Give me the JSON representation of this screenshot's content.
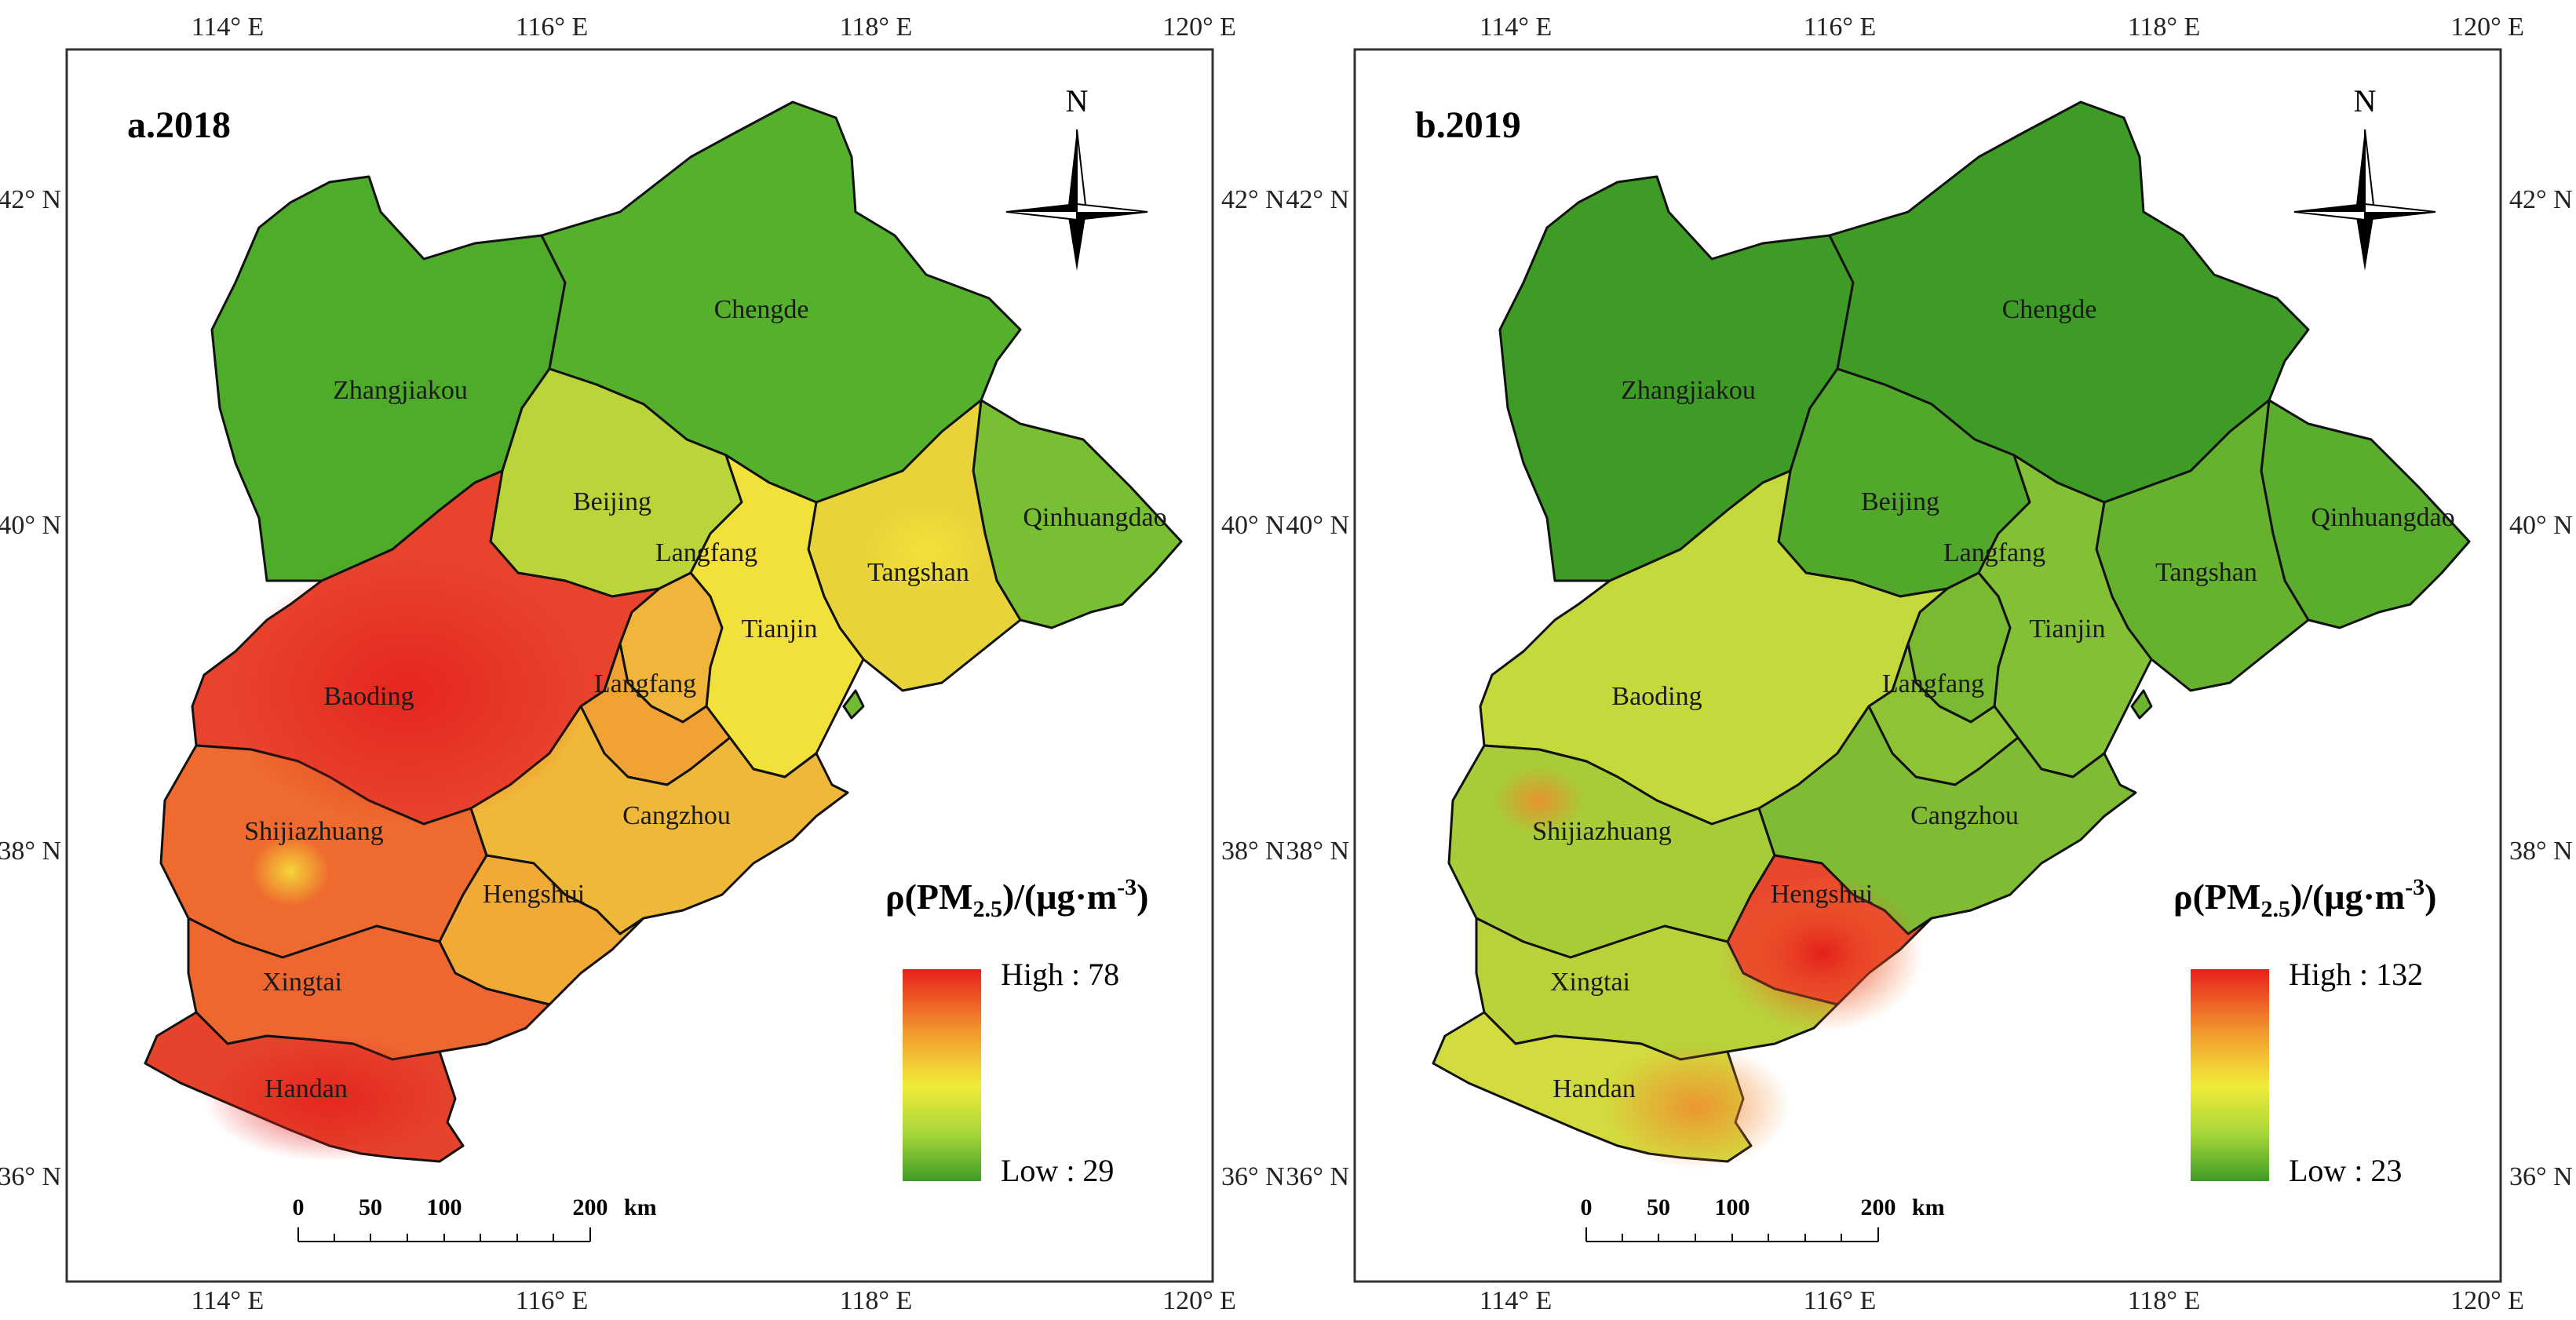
{
  "axes": {
    "lon_labels": [
      "114° E",
      "116° E",
      "118° E",
      "120° E"
    ],
    "lat_labels": [
      "42° N",
      "40° N",
      "38° N",
      "36° N"
    ]
  },
  "panels": [
    {
      "title": "a.2018",
      "legend": {
        "title": "ρ(PM",
        "title_sub": "2.5",
        "title_tail": ")/(μg·m",
        "title_sup": "-3",
        "title_end": ")",
        "high": "High : 78",
        "low": "Low : 29"
      },
      "colors": {
        "Zhangjiakou": "#4fab2a",
        "Chengde": "#55b02c",
        "Beijing": "#b9d53a",
        "Qinhuangdao": "#78bf33",
        "Tangshan": "#e8d43a",
        "Tianjin": "#f2e13a",
        "LangfangN": "#f0b53a",
        "Langfang": "#f0a235",
        "Baoding": "#e8432c",
        "Shijiazhuang": "#ee6a2e",
        "Cangzhou": "#f0b838",
        "Hengshui": "#f2aa36",
        "Xingtai": "#ee6630",
        "Handan": "#e5432c"
      }
    },
    {
      "title": "b.2019",
      "legend": {
        "title": "ρ(PM",
        "title_sub": "2.5",
        "title_tail": ")/(μg·m",
        "title_sup": "-3",
        "title_end": ")",
        "high": "High : 132",
        "low": "Low : 23"
      },
      "colors": {
        "Zhangjiakou": "#3e9c26",
        "Chengde": "#3e9c26",
        "Beijing": "#52a82b",
        "Qinhuangdao": "#5bad2e",
        "Tangshan": "#66b22f",
        "Tianjin": "#82c035",
        "LangfangN": "#7ab932",
        "Langfang": "#8ec336",
        "Baoding": "#c4d93c",
        "Shijiazhuang": "#a6cd38",
        "Cangzhou": "#7fbb33",
        "Hengshui": "#e9472d",
        "Xingtai": "#b9d23a",
        "Handan": "#d3dc3e"
      }
    }
  ],
  "cities": [
    "Zhangjiakou",
    "Chengde",
    "Beijing",
    "Qinhuangdao",
    "Langfang",
    "Tangshan",
    "Tianjin",
    "Baoding",
    "Langfang",
    "Shijiazhuang",
    "Cangzhou",
    "Hengshui",
    "Xingtai",
    "Handan"
  ],
  "north": "N",
  "scale": {
    "ticks": [
      "0",
      "50",
      "100",
      "200"
    ],
    "unit": "km"
  },
  "gradient": {
    "high": "#e8201c",
    "upper": "#f29a2e",
    "mid": "#f1ec3a",
    "lower": "#a6d63a",
    "low": "#3f9d26"
  }
}
